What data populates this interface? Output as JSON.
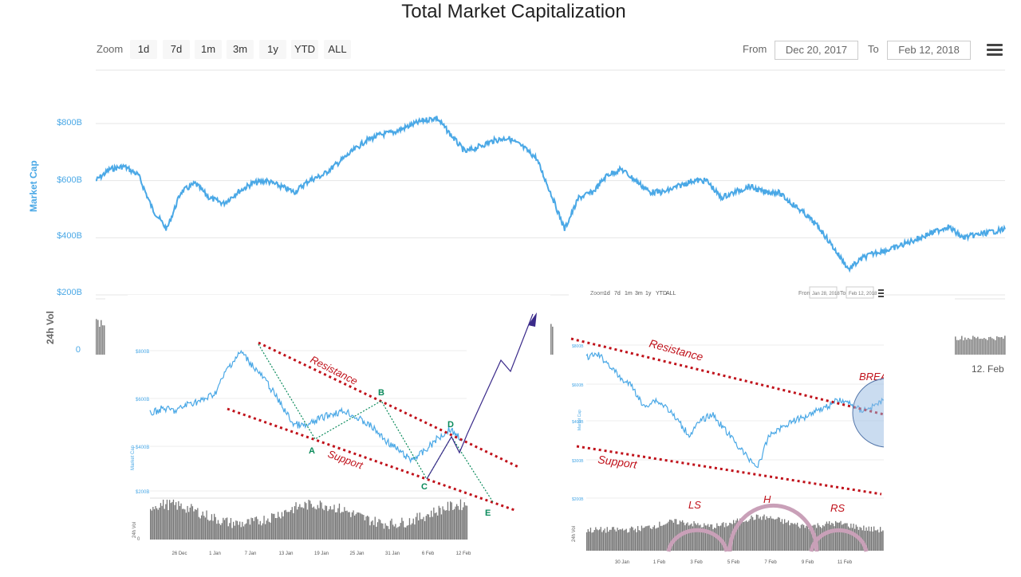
{
  "header": {
    "title": "Total Market Capitalization",
    "zoom_label": "Zoom",
    "zoom_buttons": [
      "1d",
      "7d",
      "1m",
      "3m",
      "1y",
      "YTD",
      "ALL"
    ],
    "from_label": "From",
    "from_value": "Dec 20, 2017",
    "to_label": "To",
    "to_value": "Feb 12, 2018"
  },
  "chart_data": [
    {
      "type": "line",
      "title": "Total Market Capitalization",
      "ylabel": "Market Cap",
      "yticks": [
        "$800B",
        "$600B",
        "$400B",
        "$200B"
      ],
      "ytick_values": [
        800,
        600,
        400,
        200
      ],
      "ylim": [
        200,
        850
      ],
      "series": [
        {
          "color": "#4aa8e6",
          "values": [
            600,
            640,
            650,
            620,
            500,
            430,
            560,
            590,
            540,
            520,
            560,
            590,
            600,
            580,
            560,
            600,
            620,
            660,
            700,
            740,
            760,
            770,
            790,
            810,
            820,
            760,
            700,
            720,
            740,
            750,
            720,
            680,
            560,
            430,
            540,
            560,
            620,
            640,
            600,
            560,
            560,
            580,
            600,
            600,
            540,
            560,
            580,
            560,
            560,
            520,
            480,
            430,
            360,
            290,
            330,
            350,
            360,
            380,
            400,
            420,
            440,
            400,
            410,
            420,
            430
          ]
        }
      ],
      "volume_label": "24h Vol",
      "volume_ticks": [
        "0"
      ],
      "xticks_visible": [
        "12. Feb"
      ]
    },
    {
      "type": "line",
      "annotations": [
        "Resistance",
        "Support",
        "A",
        "B",
        "C",
        "D",
        "E"
      ],
      "series": [
        {
          "color": "#4aa8e6",
          "values": [
            520,
            540,
            530,
            560,
            570,
            600,
            700,
            760,
            700,
            640,
            560,
            480,
            470,
            500,
            520,
            530,
            500,
            470,
            420,
            380,
            340,
            370,
            420,
            460,
            420
          ]
        }
      ],
      "xticks": [
        "26 Dec",
        "1 Jan",
        "7 Jan",
        "13 Jan",
        "19 Jan",
        "25 Jan",
        "31 Jan",
        "6 Feb",
        "12 Feb"
      ]
    },
    {
      "type": "line",
      "zoom_buttons": [
        "1d",
        "7d",
        "1m",
        "3m",
        "1y",
        "YTD",
        "ALL"
      ],
      "from_label": "From",
      "from_value": "Jan 28, 2018",
      "to_label": "To",
      "to_value": "Feb 12, 2018",
      "annotations": [
        "Resistance",
        "Support",
        "BREACKAGE???",
        "LS",
        "H",
        "RS"
      ],
      "series": [
        {
          "color": "#4aa8e6",
          "values": [
            640,
            650,
            620,
            580,
            560,
            500,
            520,
            500,
            460,
            420,
            460,
            480,
            440,
            400,
            360,
            330,
            420,
            440,
            460,
            470,
            490,
            500,
            520,
            510,
            490,
            500,
            520
          ]
        }
      ],
      "xticks": [
        "30 Jan",
        "1 Feb",
        "3 Feb",
        "5 Feb",
        "7 Feb",
        "9 Feb",
        "11 Feb"
      ]
    }
  ]
}
